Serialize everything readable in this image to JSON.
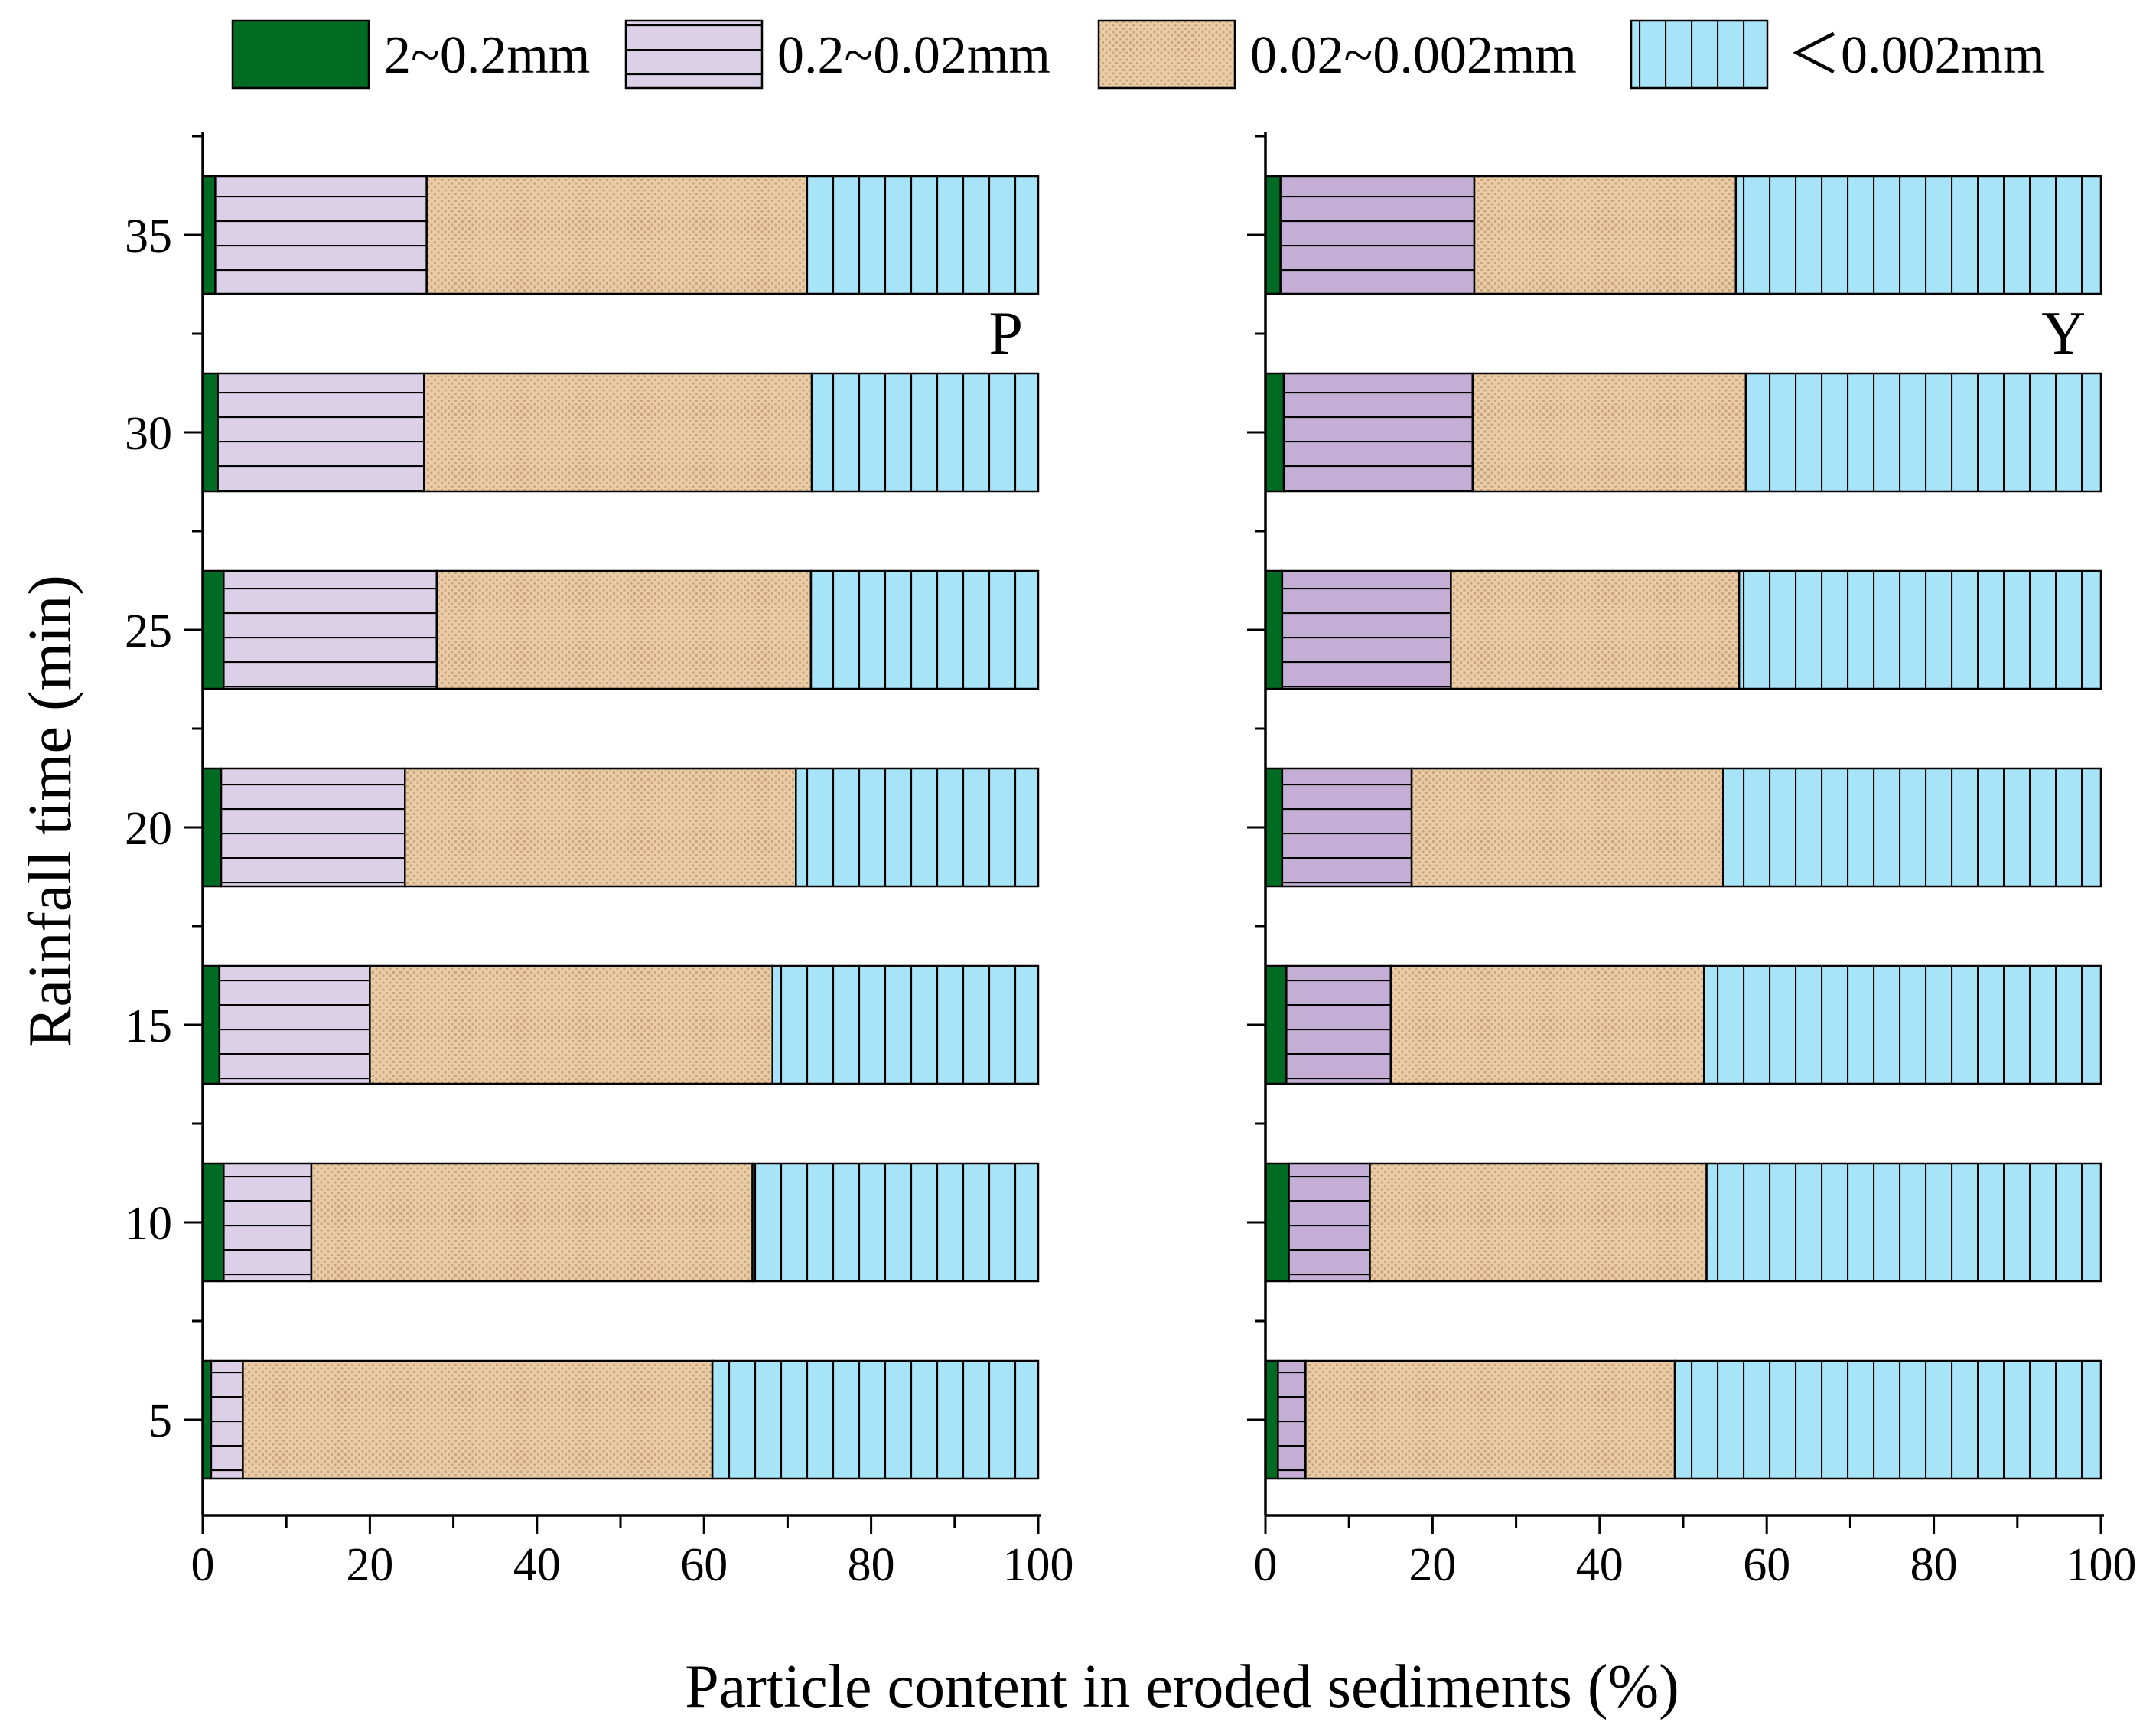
{
  "chart_data": {
    "type": "bar",
    "orientation": "horizontal",
    "stacked": true,
    "xlabel": "Particle content in eroded sediments (%)",
    "ylabel": "Rainfall time (min)",
    "xlim": [
      0,
      100
    ],
    "x_ticks": [
      "0",
      "20",
      "40",
      "60",
      "80",
      "100"
    ],
    "categories": [
      "5",
      "10",
      "15",
      "20",
      "25",
      "30",
      "35"
    ],
    "legend_position": "top",
    "legend": [
      "2~0.2mm",
      "0.2~0.02mm",
      "0.02~0.002mm",
      "＜0.002mm"
    ],
    "series_colors": [
      "#006b23",
      "#dccfe8",
      "#e8c9a2",
      "#a8e4f8"
    ],
    "panels": [
      {
        "label": "P",
        "series": [
          {
            "name": "2~0.2mm",
            "values": [
              1.0,
              2.5,
              2.0,
              2.2,
              2.5,
              1.8,
              1.5
            ]
          },
          {
            "name": "0.2~0.02mm",
            "values": [
              3.8,
              10.5,
              18.0,
              22.0,
              25.5,
              24.7,
              25.3
            ]
          },
          {
            "name": "0.02~0.002mm",
            "values": [
              56.2,
              52.8,
              48.2,
              46.8,
              44.8,
              46.4,
              45.5
            ]
          },
          {
            "name": "＜0.002mm",
            "values": [
              39.0,
              34.2,
              31.8,
              29.0,
              27.2,
              27.1,
              27.7
            ]
          }
        ]
      },
      {
        "label": "Y",
        "series": [
          {
            "name": "2~0.2mm",
            "values": [
              1.5,
              2.8,
              2.5,
              2.0,
              2.0,
              2.2,
              1.8
            ]
          },
          {
            "name": "0.2~0.02mm",
            "values": [
              3.3,
              9.7,
              12.5,
              15.5,
              20.2,
              22.6,
              23.2
            ]
          },
          {
            "name": "0.02~0.002mm",
            "values": [
              44.2,
              40.3,
              37.5,
              37.3,
              34.5,
              32.7,
              31.3
            ]
          },
          {
            "name": "＜0.002mm",
            "values": [
              51.0,
              47.2,
              47.5,
              45.2,
              43.3,
              42.5,
              43.7
            ]
          }
        ]
      }
    ]
  }
}
